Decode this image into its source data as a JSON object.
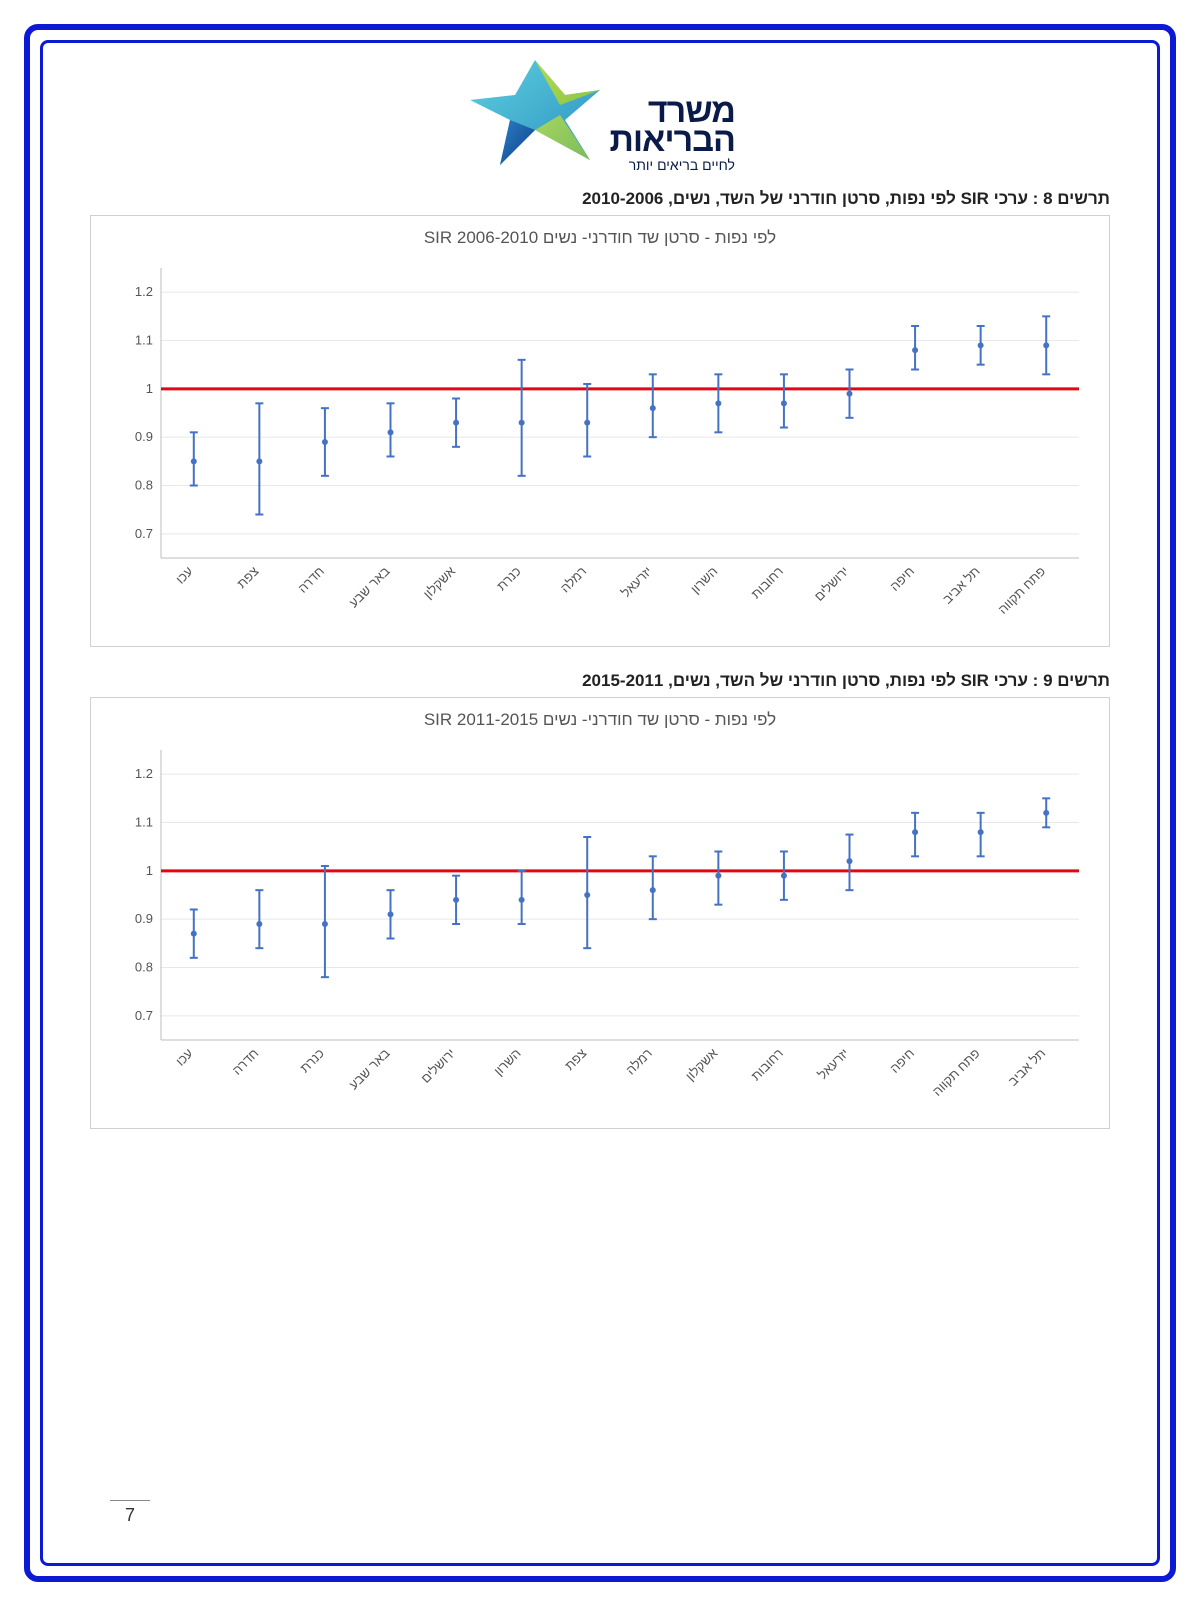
{
  "logo": {
    "line1": "משרד",
    "line2": "הבריאות",
    "tagline": "לחיים בריאים יותר",
    "colors": {
      "star_top": "#b7dc4a",
      "star_mid": "#3db5c9",
      "star_dark": "#1a5aa8"
    }
  },
  "page_number": "7",
  "frame_color": "#0c1bd3",
  "chart8": {
    "caption": "תרשים 8 : ערכי SIR לפי נפות, סרטן חודרני של השד, נשים, 2010-2006",
    "title": "SIR לפי נפות - סרטן שד חודרני- נשים 2006-2010",
    "type": "scatter-errorbar",
    "ylim": [
      0.65,
      1.25
    ],
    "yticks": [
      0.7,
      0.8,
      0.9,
      1.0,
      1.1,
      1.2
    ],
    "refline": 1.0,
    "refline_color": "#e30613",
    "series_color": "#4472c4",
    "grid_color": "#e8e8e8",
    "axis_color": "#bcbcbc",
    "tick_fontsize": 13,
    "marker_size": 6,
    "line_width": 2,
    "cap_width": 8,
    "categories": [
      "עכו",
      "צפת",
      "חדרה",
      "באר שבע",
      "אשקלון",
      "כנרת",
      "רמלה",
      "יזרעאל",
      "השרון",
      "רחובות",
      "ירושלים",
      "חיפה",
      "תל אביב",
      "פתח תקווה"
    ],
    "points": [
      {
        "y": 0.85,
        "lo": 0.8,
        "hi": 0.91
      },
      {
        "y": 0.85,
        "lo": 0.74,
        "hi": 0.97
      },
      {
        "y": 0.89,
        "lo": 0.82,
        "hi": 0.96
      },
      {
        "y": 0.91,
        "lo": 0.86,
        "hi": 0.97
      },
      {
        "y": 0.93,
        "lo": 0.88,
        "hi": 0.98
      },
      {
        "y": 0.93,
        "lo": 0.82,
        "hi": 1.06
      },
      {
        "y": 0.93,
        "lo": 0.86,
        "hi": 1.01
      },
      {
        "y": 0.96,
        "lo": 0.9,
        "hi": 1.03
      },
      {
        "y": 0.97,
        "lo": 0.91,
        "hi": 1.03
      },
      {
        "y": 0.97,
        "lo": 0.92,
        "hi": 1.03
      },
      {
        "y": 0.99,
        "lo": 0.94,
        "hi": 1.04
      },
      {
        "y": 1.08,
        "lo": 1.04,
        "hi": 1.13
      },
      {
        "y": 1.09,
        "lo": 1.05,
        "hi": 1.13
      },
      {
        "y": 1.09,
        "lo": 1.03,
        "hi": 1.15
      }
    ]
  },
  "chart9": {
    "caption": "תרשים 9 : ערכי SIR לפי נפות, סרטן חודרני של השד, נשים, 2015-2011",
    "title": "SIR לפי נפות - סרטן שד חודרני- נשים 2011-2015",
    "type": "scatter-errorbar",
    "ylim": [
      0.65,
      1.25
    ],
    "yticks": [
      0.7,
      0.8,
      0.9,
      1.0,
      1.1,
      1.2
    ],
    "refline": 1.0,
    "refline_color": "#e30613",
    "series_color": "#4472c4",
    "grid_color": "#e8e8e8",
    "axis_color": "#bcbcbc",
    "tick_fontsize": 13,
    "marker_size": 6,
    "line_width": 2,
    "cap_width": 8,
    "categories": [
      "עכו",
      "חדרה",
      "כנרת",
      "באר שבע",
      "ירושלים",
      "השרון",
      "צפת",
      "רמלה",
      "אשקלון",
      "רחובות",
      "יזרעאל",
      "חיפה",
      "פתח תקווה",
      "תל אביב"
    ],
    "points": [
      {
        "y": 0.87,
        "lo": 0.82,
        "hi": 0.92
      },
      {
        "y": 0.89,
        "lo": 0.84,
        "hi": 0.96
      },
      {
        "y": 0.89,
        "lo": 0.78,
        "hi": 1.01
      },
      {
        "y": 0.91,
        "lo": 0.86,
        "hi": 0.96
      },
      {
        "y": 0.94,
        "lo": 0.89,
        "hi": 0.99
      },
      {
        "y": 0.94,
        "lo": 0.89,
        "hi": 1.0
      },
      {
        "y": 0.95,
        "lo": 0.84,
        "hi": 1.07
      },
      {
        "y": 0.96,
        "lo": 0.9,
        "hi": 1.03
      },
      {
        "y": 0.99,
        "lo": 0.93,
        "hi": 1.04
      },
      {
        "y": 0.99,
        "lo": 0.94,
        "hi": 1.04
      },
      {
        "y": 1.02,
        "lo": 0.96,
        "hi": 1.075
      },
      {
        "y": 1.08,
        "lo": 1.03,
        "hi": 1.12
      },
      {
        "y": 1.08,
        "lo": 1.03,
        "hi": 1.12
      },
      {
        "y": 1.12,
        "lo": 1.09,
        "hi": 1.15
      }
    ]
  }
}
